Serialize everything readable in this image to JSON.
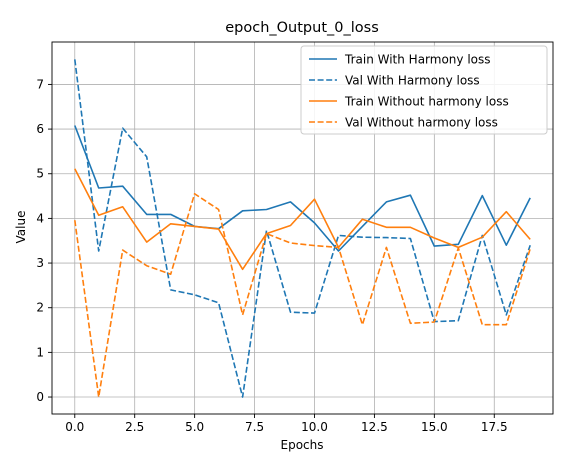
{
  "chart_data": {
    "type": "line",
    "title": "epoch_Output_0_loss",
    "xlabel": "Epochs",
    "ylabel": "Value",
    "xlim": [
      -0.95,
      19.95
    ],
    "ylim": [
      -0.38,
      7.95
    ],
    "xticks": [
      0,
      2.5,
      5,
      7.5,
      10,
      12.5,
      15,
      17.5
    ],
    "xtick_labels": [
      "0.0",
      "2.5",
      "5.0",
      "7.5",
      "10.0",
      "12.5",
      "15.0",
      "17.5"
    ],
    "yticks": [
      0,
      1,
      2,
      3,
      4,
      5,
      6,
      7
    ],
    "ytick_labels": [
      "0",
      "1",
      "2",
      "3",
      "4",
      "5",
      "6",
      "7"
    ],
    "grid": true,
    "legend_position": "top-right",
    "x": [
      0,
      1,
      2,
      3,
      4,
      5,
      6,
      7,
      8,
      9,
      10,
      11,
      12,
      13,
      14,
      15,
      16,
      17,
      18,
      19
    ],
    "series": [
      {
        "name": "Train With Harmony loss",
        "color": "#1f77b4",
        "dash": "solid",
        "values": [
          6.08,
          4.68,
          4.72,
          4.09,
          4.09,
          3.82,
          3.77,
          4.17,
          4.2,
          4.37,
          3.9,
          3.27,
          3.82,
          4.37,
          4.52,
          3.38,
          3.42,
          4.51,
          3.4,
          4.46
        ]
      },
      {
        "name": "Val With Harmony loss",
        "color": "#1f77b4",
        "dash": "dashed",
        "values": [
          7.56,
          3.27,
          6.02,
          5.38,
          2.4,
          2.29,
          2.11,
          0.0,
          3.73,
          1.9,
          1.88,
          3.62,
          3.58,
          3.57,
          3.55,
          1.69,
          1.71,
          3.62,
          1.84,
          3.4
        ]
      },
      {
        "name": "Train Without harmony loss",
        "color": "#ff7f0e",
        "dash": "solid",
        "values": [
          5.11,
          4.07,
          4.26,
          3.47,
          3.88,
          3.82,
          3.76,
          2.86,
          3.66,
          3.84,
          4.43,
          3.35,
          3.98,
          3.8,
          3.8,
          3.56,
          3.35,
          3.58,
          4.15,
          3.53
        ]
      },
      {
        "name": "Val Without harmony loss",
        "color": "#ff7f0e",
        "dash": "dashed",
        "values": [
          3.96,
          0.0,
          3.29,
          2.94,
          2.75,
          4.55,
          4.2,
          1.84,
          3.66,
          3.45,
          3.39,
          3.35,
          1.62,
          3.35,
          1.65,
          1.68,
          3.34,
          1.62,
          1.62,
          3.32
        ]
      }
    ]
  }
}
